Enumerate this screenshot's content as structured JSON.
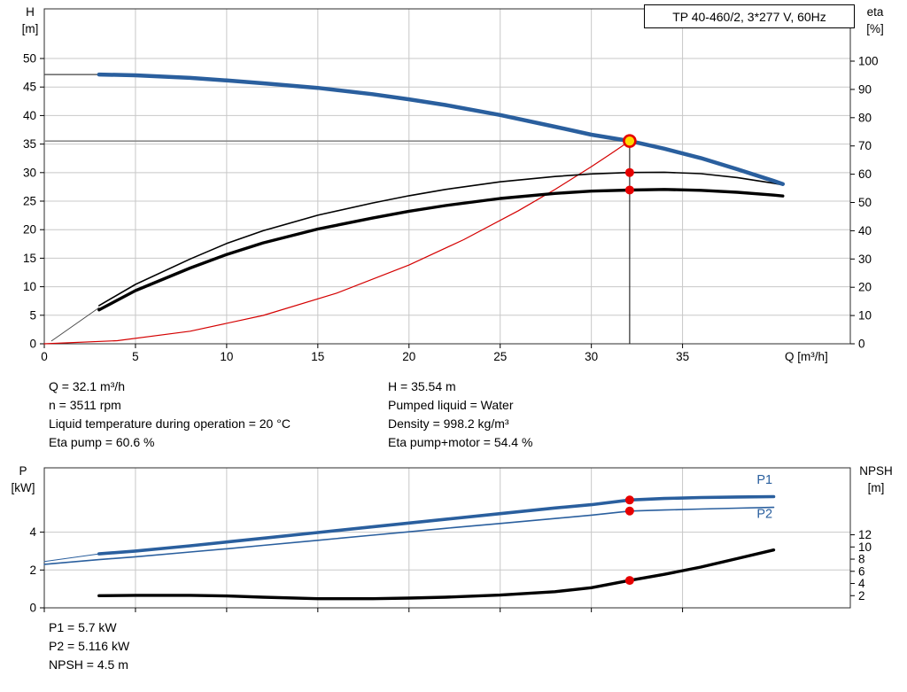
{
  "colors": {
    "curve_blue": "#2a5f9e",
    "curve_black": "#000000",
    "curve_red": "#d40000",
    "marker_red": "#e60000",
    "marker_yellow": "#ffd800",
    "grid": "#c8c8c8",
    "ref_gray": "#8c8c8c"
  },
  "info_top": {
    "left": [
      "Q = 32.1 m³/h",
      "n = 3511 rpm",
      "Liquid temperature during operation = 20 °C",
      "Eta pump = 60.6 %"
    ],
    "right": [
      "H = 35.54 m",
      "Pumped liquid = Water",
      "Density = 998.2 kg/m³",
      "Eta pump+motor = 54.4 %"
    ]
  },
  "info_bottom": [
    "P1 = 5.7 kW",
    "P2 = 5.116 kW",
    "NPSH = 4.5 m"
  ],
  "chart_data": [
    {
      "id": "head-efficiency-chart",
      "type": "line",
      "title": "TP 40-460/2, 3*277 V, 60Hz",
      "x_axis": {
        "label": "Q [m³/h]",
        "min": 0,
        "max": 44.2,
        "ticks": [
          0,
          5,
          10,
          15,
          20,
          25,
          30,
          35
        ],
        "tick_labels": true
      },
      "left_axis": {
        "label": [
          "H",
          "[m]"
        ],
        "min": 0,
        "max": 58.7,
        "ticks": [
          0,
          5,
          10,
          15,
          20,
          25,
          30,
          35,
          40,
          45,
          50
        ],
        "tick_labels": true
      },
      "right_axis": {
        "label": [
          "eta",
          "[%]"
        ],
        "min": 0,
        "max": 118.5,
        "ticks": [
          0,
          10,
          20,
          30,
          40,
          50,
          60,
          70,
          80,
          90,
          100
        ],
        "tick_labels": true
      },
      "ref_lines": [
        {
          "name": "duty-head-refline",
          "axis": "left",
          "color": "#8c8c8c",
          "width": 1.6,
          "from": [
            0,
            35.54
          ],
          "to": [
            32.1,
            35.54
          ]
        },
        {
          "name": "duty-flow-refline",
          "axis": "left",
          "color": "#1a1a1a",
          "width": 1.1,
          "from": [
            32.1,
            0
          ],
          "to": [
            32.1,
            35.54
          ]
        }
      ],
      "series": [
        {
          "name": "h-curve-lead",
          "axis": "left",
          "color": "#444444",
          "width": 1.2,
          "points": [
            [
              0,
              47.2
            ],
            [
              3,
              47.2
            ]
          ]
        },
        {
          "name": "eta-curves-lead",
          "axis": "right",
          "color": "#444444",
          "width": 0.9,
          "points": [
            [
              0.4,
              1
            ],
            [
              3,
              12.8
            ]
          ]
        },
        {
          "name": "system-curve",
          "axis": "left",
          "color": "#d40000",
          "width": 1.2,
          "points": [
            [
              0,
              0
            ],
            [
              4,
              0.55
            ],
            [
              8,
              2.21
            ],
            [
              12,
              4.97
            ],
            [
              16,
              8.83
            ],
            [
              20,
              13.8
            ],
            [
              23,
              18.25
            ],
            [
              26,
              23.32
            ],
            [
              28,
              27.04
            ],
            [
              30,
              31.04
            ],
            [
              31,
              33.15
            ],
            [
              32.1,
              35.54
            ]
          ]
        },
        {
          "name": "eta-pump-curve",
          "axis": "right",
          "color": "#000000",
          "width": 1.6,
          "points": [
            [
              3,
              13.5
            ],
            [
              5,
              21.0
            ],
            [
              8,
              30.0
            ],
            [
              10,
              35.5
            ],
            [
              12,
              40.0
            ],
            [
              15,
              45.5
            ],
            [
              18,
              49.8
            ],
            [
              20,
              52.4
            ],
            [
              22,
              54.6
            ],
            [
              25,
              57.3
            ],
            [
              28,
              59.2
            ],
            [
              30,
              60.1
            ],
            [
              32.1,
              60.6
            ],
            [
              34,
              60.7
            ],
            [
              36,
              60.2
            ],
            [
              38,
              58.8
            ],
            [
              40,
              56.8
            ],
            [
              40.5,
              56.2
            ]
          ]
        },
        {
          "name": "eta-pump-motor-curve",
          "axis": "right",
          "color": "#000000",
          "width": 3.4,
          "points": [
            [
              3,
              12.0
            ],
            [
              5,
              18.8
            ],
            [
              8,
              26.8
            ],
            [
              10,
              31.6
            ],
            [
              12,
              35.7
            ],
            [
              15,
              40.6
            ],
            [
              18,
              44.5
            ],
            [
              20,
              46.9
            ],
            [
              22,
              48.9
            ],
            [
              25,
              51.4
            ],
            [
              28,
              53.2
            ],
            [
              30,
              54.0
            ],
            [
              32.1,
              54.4
            ],
            [
              34,
              54.6
            ],
            [
              36,
              54.3
            ],
            [
              38,
              53.6
            ],
            [
              40,
              52.6
            ],
            [
              40.5,
              52.3
            ]
          ]
        },
        {
          "name": "h-curve",
          "axis": "left",
          "color": "#2a5f9e",
          "width": 4.5,
          "points": [
            [
              3,
              47.2
            ],
            [
              5,
              47.05
            ],
            [
              8,
              46.6
            ],
            [
              10,
              46.15
            ],
            [
              12,
              45.65
            ],
            [
              15,
              44.85
            ],
            [
              18,
              43.75
            ],
            [
              20,
              42.85
            ],
            [
              22,
              41.85
            ],
            [
              25,
              40.1
            ],
            [
              28,
              38.05
            ],
            [
              30,
              36.65
            ],
            [
              32.1,
              35.54
            ],
            [
              34,
              34.2
            ],
            [
              36,
              32.55
            ],
            [
              38,
              30.6
            ],
            [
              40,
              28.55
            ],
            [
              40.5,
              28.0
            ]
          ]
        }
      ],
      "markers": [
        {
          "name": "eta-pump-marker",
          "axis": "right",
          "q": 32.1,
          "v": 60.6,
          "r": 5,
          "fill": "#e60000"
        },
        {
          "name": "eta-pump-motor-marker",
          "axis": "right",
          "q": 32.1,
          "v": 54.4,
          "r": 5,
          "fill": "#e60000"
        },
        {
          "name": "duty-point-marker",
          "axis": "left",
          "q": 32.1,
          "v": 35.54,
          "r": 6.5,
          "fill": "#ffd800",
          "stroke": "#e60000",
          "stroke_width": 2.6
        }
      ]
    },
    {
      "id": "power-npsh-chart",
      "type": "line",
      "x_axis": {
        "label": "",
        "min": 0,
        "max": 44.2,
        "ticks": [
          0,
          5,
          10,
          15,
          20,
          25,
          30,
          35
        ],
        "tick_labels": false
      },
      "left_axis": {
        "label": [
          "P",
          "[kW]"
        ],
        "min": 0,
        "max": 7.4,
        "ticks": [
          0,
          2,
          4
        ],
        "tick_labels": true
      },
      "right_axis": {
        "label": [
          "NPSH",
          "[m]"
        ],
        "min": 0,
        "max": 23.0,
        "ticks": [
          2,
          4,
          6,
          8,
          10,
          12
        ],
        "tick_labels": true
      },
      "series": [
        {
          "name": "p1-curve-lead",
          "axis": "left",
          "color": "#2a5f9e",
          "width": 1,
          "points": [
            [
              0,
              2.45
            ],
            [
              3,
              2.85
            ]
          ]
        },
        {
          "name": "p2-curve",
          "axis": "left",
          "color": "#2a5f9e",
          "width": 1.6,
          "points": [
            [
              0,
              2.3
            ],
            [
              3,
              2.55
            ],
            [
              5,
              2.7
            ],
            [
              8,
              2.95
            ],
            [
              10,
              3.12
            ],
            [
              12,
              3.3
            ],
            [
              15,
              3.57
            ],
            [
              18,
              3.84
            ],
            [
              20,
              4.02
            ],
            [
              22,
              4.2
            ],
            [
              25,
              4.46
            ],
            [
              28,
              4.72
            ],
            [
              30,
              4.9
            ],
            [
              32.1,
              5.116
            ],
            [
              34,
              5.17
            ],
            [
              36,
              5.22
            ],
            [
              38,
              5.27
            ],
            [
              40,
              5.31
            ]
          ]
        },
        {
          "name": "p1-curve",
          "axis": "left",
          "color": "#2a5f9e",
          "width": 3.6,
          "points": [
            [
              3,
              2.85
            ],
            [
              5,
              3.0
            ],
            [
              8,
              3.28
            ],
            [
              10,
              3.48
            ],
            [
              12,
              3.68
            ],
            [
              15,
              3.98
            ],
            [
              18,
              4.28
            ],
            [
              20,
              4.48
            ],
            [
              22,
              4.68
            ],
            [
              25,
              4.98
            ],
            [
              28,
              5.28
            ],
            [
              30,
              5.45
            ],
            [
              32.1,
              5.7
            ],
            [
              34,
              5.78
            ],
            [
              36,
              5.83
            ],
            [
              38,
              5.86
            ],
            [
              40,
              5.88
            ]
          ]
        },
        {
          "name": "npsh-curve",
          "axis": "right",
          "color": "#000000",
          "width": 3.4,
          "points": [
            [
              3,
              2.0
            ],
            [
              5,
              2.05
            ],
            [
              8,
              2.05
            ],
            [
              10,
              1.95
            ],
            [
              12,
              1.75
            ],
            [
              15,
              1.5
            ],
            [
              18,
              1.5
            ],
            [
              20,
              1.6
            ],
            [
              22,
              1.75
            ],
            [
              25,
              2.1
            ],
            [
              28,
              2.65
            ],
            [
              30,
              3.3
            ],
            [
              32.1,
              4.5
            ],
            [
              34,
              5.5
            ],
            [
              36,
              6.7
            ],
            [
              38,
              8.1
            ],
            [
              40,
              9.5
            ]
          ]
        }
      ],
      "curve_labels": [
        {
          "text": "P1",
          "axis": "left",
          "q": 39.5,
          "v": 6.55,
          "color": "#2a5f9e"
        },
        {
          "text": "P2",
          "axis": "left",
          "q": 39.5,
          "v": 4.75,
          "color": "#2a5f9e"
        }
      ],
      "markers": [
        {
          "name": "p1-marker",
          "axis": "left",
          "q": 32.1,
          "v": 5.7,
          "r": 5,
          "fill": "#e60000"
        },
        {
          "name": "p2-marker",
          "axis": "left",
          "q": 32.1,
          "v": 5.116,
          "r": 5,
          "fill": "#e60000"
        },
        {
          "name": "npsh-marker",
          "axis": "right",
          "q": 32.1,
          "v": 4.5,
          "r": 5,
          "fill": "#e60000"
        }
      ]
    }
  ]
}
